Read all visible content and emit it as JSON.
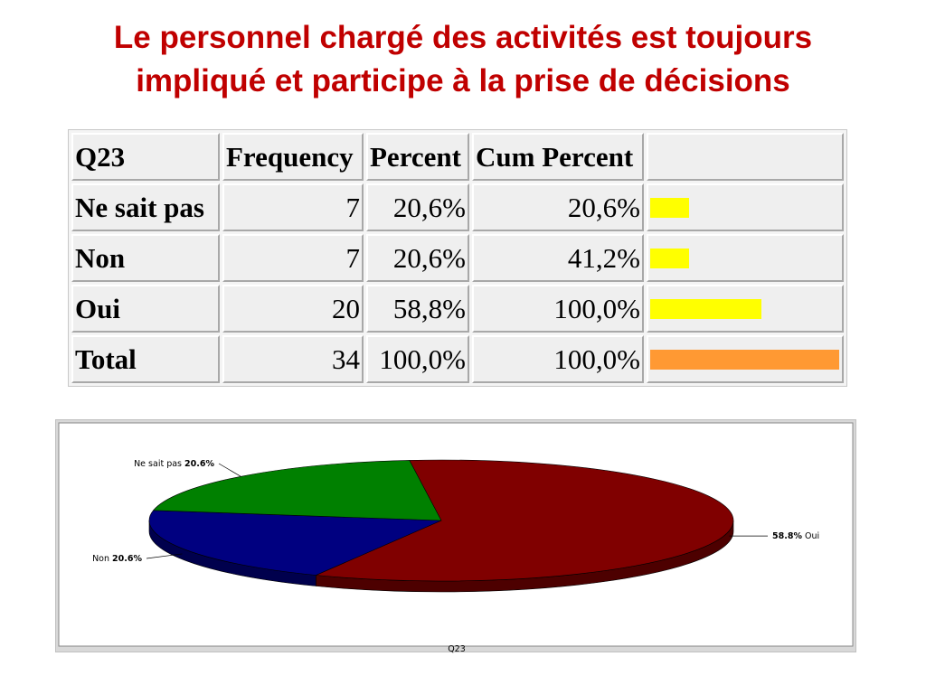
{
  "title_line1": "Le personnel chargé des activités est toujours",
  "title_line2": "impliqué et participe à la prise de décisions",
  "table": {
    "headers": [
      "Q23",
      "Frequency",
      "Percent",
      "Cum Percent",
      ""
    ],
    "rows": [
      {
        "label": "Ne sait pas",
        "frequency": "7",
        "percent": "20,6%",
        "cum_percent": "20,6%",
        "bar_fraction": 0.206,
        "bar_color": "#ffff00"
      },
      {
        "label": "Non",
        "frequency": "7",
        "percent": "20,6%",
        "cum_percent": "41,2%",
        "bar_fraction": 0.206,
        "bar_color": "#ffff00"
      },
      {
        "label": "Oui",
        "frequency": "20",
        "percent": "58,8%",
        "cum_percent": "100,0%",
        "bar_fraction": 0.588,
        "bar_color": "#ffff00"
      },
      {
        "label": "Total",
        "frequency": "34",
        "percent": "100,0%",
        "cum_percent": "100,0%",
        "bar_fraction": 1.0,
        "bar_color": "#ff9933"
      }
    ]
  },
  "chart_data": {
    "type": "pie",
    "title": "",
    "xlabel": "Q23",
    "slices": [
      {
        "label": "Oui",
        "value": 58.8,
        "value_label": "58.8%",
        "color": "#800000"
      },
      {
        "label": "Non",
        "value": 20.6,
        "value_label": "20.6%",
        "color": "#000080"
      },
      {
        "label": "Ne sait pas",
        "value": 20.6,
        "value_label": "20.6%",
        "color": "#008000"
      }
    ]
  }
}
